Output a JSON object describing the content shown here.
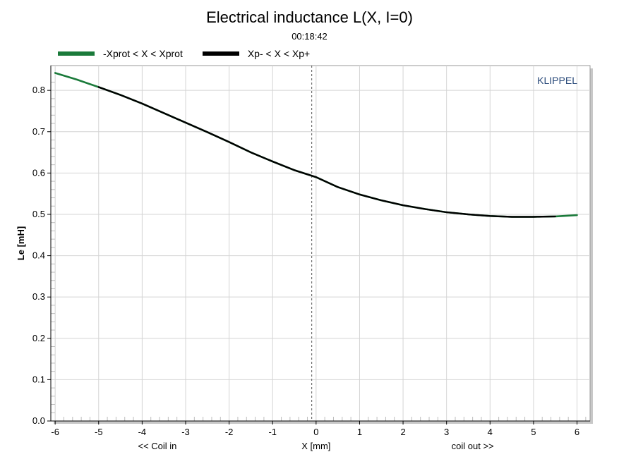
{
  "chart_data": {
    "type": "line",
    "title": "Electrical inductance L(X, I=0)",
    "subtitle": "00:18:42",
    "watermark": "KLIPPEL",
    "xlabel": "X [mm]",
    "xlabel_left": "<< Coil in",
    "xlabel_right": "coil out >>",
    "ylabel": "Le [mH]",
    "xlim": [
      -6.1,
      6.3
    ],
    "ylim": [
      0.0,
      0.86
    ],
    "xticks": [
      -6,
      -5,
      -4,
      -3,
      -2,
      -1,
      0,
      1,
      2,
      3,
      4,
      5,
      6
    ],
    "xtick_labels": [
      "-6",
      "-5",
      "-4",
      "-3",
      "-2",
      "-1",
      "0",
      "1",
      "2",
      "3",
      "4",
      "5",
      "6"
    ],
    "yticks": [
      0.0,
      0.1,
      0.2,
      0.3,
      0.4,
      0.5,
      0.6,
      0.7,
      0.8
    ],
    "ytick_labels": [
      "0.0",
      "0.1",
      "0.2",
      "0.3",
      "0.4",
      "0.5",
      "0.6",
      "0.7",
      "0.8"
    ],
    "grid": true,
    "legend_position": "top-left",
    "vertical_marker_x": -0.1,
    "colors": {
      "protected": "#1a7a3a",
      "operating": "#000000",
      "grid": "#d4d4d4",
      "watermark": "#2a4a7a"
    },
    "series": [
      {
        "name": "-Xprot < X < Xprot",
        "color": "#1a7a3a",
        "x": [
          -6.0,
          -5.5,
          -5.0,
          -4.5,
          -4.0,
          -3.5,
          -3.0,
          -2.5,
          -2.0,
          -1.5,
          -1.0,
          -0.5,
          0.0,
          0.5,
          1.0,
          1.5,
          2.0,
          2.5,
          3.0,
          3.5,
          4.0,
          4.5,
          5.0,
          5.5,
          6.0
        ],
        "y": [
          0.842,
          0.826,
          0.808,
          0.789,
          0.768,
          0.745,
          0.722,
          0.699,
          0.675,
          0.65,
          0.628,
          0.607,
          0.59,
          0.566,
          0.548,
          0.534,
          0.522,
          0.513,
          0.505,
          0.5,
          0.496,
          0.494,
          0.494,
          0.495,
          0.498
        ]
      },
      {
        "name": "Xp- < X < Xp+",
        "color": "#000000",
        "x": [
          -5.0,
          -4.5,
          -4.0,
          -3.5,
          -3.0,
          -2.5,
          -2.0,
          -1.5,
          -1.0,
          -0.5,
          0.0,
          0.5,
          1.0,
          1.5,
          2.0,
          2.5,
          3.0,
          3.5,
          4.0,
          4.5,
          5.0,
          5.5
        ],
        "y": [
          0.808,
          0.789,
          0.768,
          0.745,
          0.722,
          0.699,
          0.675,
          0.65,
          0.628,
          0.607,
          0.59,
          0.566,
          0.548,
          0.534,
          0.522,
          0.513,
          0.505,
          0.5,
          0.496,
          0.494,
          0.494,
          0.495
        ]
      }
    ]
  }
}
